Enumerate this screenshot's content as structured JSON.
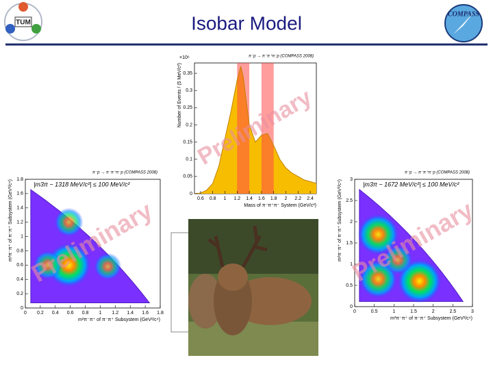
{
  "title": "Isobar Model",
  "logos": {
    "left": "TUM",
    "right": "COMPASS"
  },
  "chart_data": [
    {
      "type": "area",
      "title": "π⁻p → π⁻π⁺π⁻p (COMPASS 2008)",
      "multiplier": "×10⁶",
      "xlabel": "Mass of π⁻π⁺π⁻ System (GeV/c²)",
      "ylabel": "Number of Events / (5 MeV/c²)",
      "watermark": "Preliminary",
      "x": [
        0.5,
        0.6,
        0.7,
        0.8,
        0.9,
        1.0,
        1.1,
        1.2,
        1.26,
        1.3,
        1.4,
        1.5,
        1.6,
        1.7,
        1.8,
        1.9,
        2.0,
        2.1,
        2.2,
        2.3,
        2.4,
        2.5
      ],
      "values": [
        0,
        0.002,
        0.01,
        0.03,
        0.08,
        0.16,
        0.24,
        0.33,
        0.37,
        0.34,
        0.2,
        0.15,
        0.17,
        0.175,
        0.14,
        0.1,
        0.075,
        0.06,
        0.05,
        0.04,
        0.035,
        0.03
      ],
      "color": "#f7bd00",
      "band_color": "#ff4a4a",
      "bands": [
        [
          1.2,
          1.4
        ],
        [
          1.6,
          1.8
        ]
      ],
      "xlim": [
        0.5,
        2.5
      ],
      "xticks": [
        0.6,
        0.8,
        1,
        1.2,
        1.4,
        1.6,
        1.8,
        2,
        2.2,
        2.4
      ],
      "ylim": [
        0,
        0.38
      ],
      "yticks": [
        0,
        0.05,
        0.1,
        0.15,
        0.2,
        0.25,
        0.3,
        0.35
      ]
    },
    {
      "type": "heatmap",
      "title": "π⁻p → π⁻π⁺π⁻p (COMPASS 2008)",
      "cut": "|m3π − 1318 MeV/c²| ≤ 100 MeV/c²",
      "xlabel": "m²π⁻π⁺ of π⁻π⁺ Subsystem (GeV²/c⁴)",
      "ylabel": "m²π⁻π⁺ of π⁻π⁺ Subsystem (GeV²/c⁴)",
      "watermark": "Preliminary",
      "peaks": {
        "x": [
          0.58,
          0.58,
          0.3,
          1.1
        ],
        "y": [
          0.6,
          1.2,
          0.6,
          0.58
        ],
        "values": [
          1,
          0.5,
          0.5,
          0.45
        ]
      },
      "xlim": [
        0,
        1.8
      ],
      "xticks": [
        0,
        0.2,
        0.4,
        0.6,
        0.8,
        1,
        1.2,
        1.4,
        1.6,
        1.8
      ],
      "ylim": [
        0,
        1.8
      ],
      "yticks": [
        0,
        0.2,
        0.4,
        0.6,
        0.8,
        1,
        1.2,
        1.4,
        1.6,
        1.8
      ]
    },
    {
      "type": "heatmap",
      "title": "π⁻p → π⁻π⁺π⁻p (COMPASS 2008)",
      "cut": "|m3π − 1672 MeV/c²| ≤ 100 MeV/c²",
      "xlabel": "m²π⁻π⁺ of π⁻π⁺ Subsystem (GeV²/c⁴)",
      "ylabel": "m²π⁻π⁺ of π⁻π⁺ Subsystem (GeV²/c⁴)",
      "watermark": "Preliminary",
      "peaks": {
        "x": [
          0.6,
          0.6,
          1.65,
          1.1
        ],
        "y": [
          1.7,
          0.65,
          0.6,
          1.1
        ],
        "values": [
          0.9,
          0.8,
          1,
          0.5
        ]
      },
      "xlim": [
        0,
        3
      ],
      "xticks": [
        0,
        0.5,
        1,
        1.5,
        2,
        2.5,
        3
      ],
      "ylim": [
        0,
        3
      ],
      "yticks": [
        0,
        0.5,
        1,
        1.5,
        2,
        2.5,
        3
      ]
    }
  ]
}
